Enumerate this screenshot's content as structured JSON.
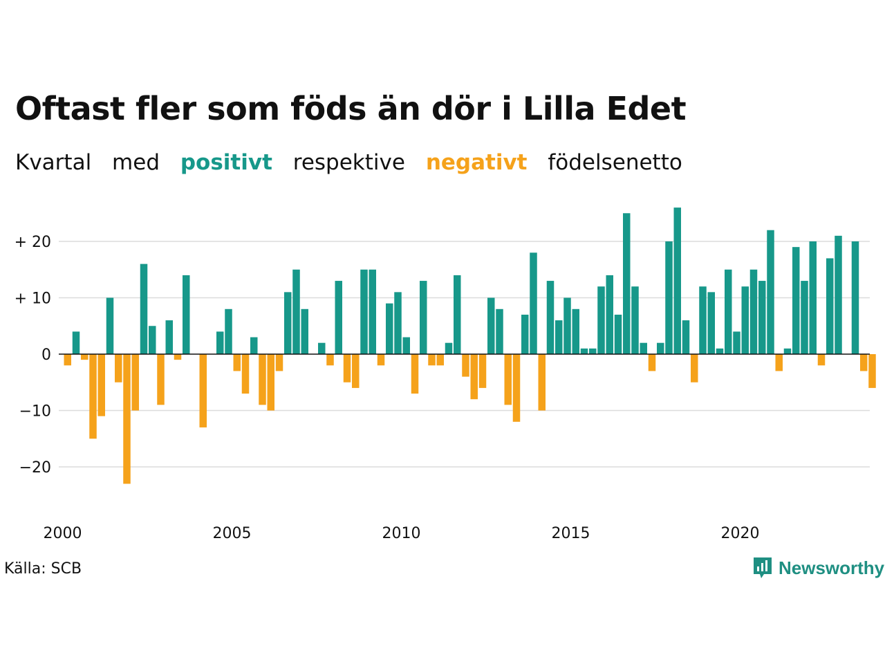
{
  "title": "Oftast fler som föds än dör i Lilla Edet",
  "subtitle": {
    "part1": "Kvartal",
    "part2": "med",
    "positive": "positivt",
    "part3": "respektive",
    "negative": "negativt",
    "part4": "födelsenetto"
  },
  "source": "Källa: SCB",
  "logo": {
    "text": "Newsworthy",
    "icon": "newsworthy-chart-bubble-icon"
  },
  "colors": {
    "positive": "#17988a",
    "negative": "#f5a21b",
    "grid": "#dcdcdc"
  },
  "chart_data": {
    "type": "bar",
    "x_start_year": 2000,
    "periods_per_year": 4,
    "xlabel": "",
    "ylabel": "",
    "ylim": [
      -28,
      31
    ],
    "y_ticks": [
      {
        "value": 20,
        "label": "+ 20"
      },
      {
        "value": 10,
        "label": "+ 10"
      },
      {
        "value": 0,
        "label": "0"
      },
      {
        "value": -10,
        "label": "−10"
      },
      {
        "value": -20,
        "label": "−20"
      }
    ],
    "x_ticks": [
      {
        "year": 2000,
        "label": "2000"
      },
      {
        "year": 2005,
        "label": "2005"
      },
      {
        "year": 2010,
        "label": "2010"
      },
      {
        "year": 2015,
        "label": "2015"
      },
      {
        "year": 2020,
        "label": "2020"
      }
    ],
    "values": [
      -2,
      4,
      -1,
      -15,
      -11,
      10,
      -5,
      -23,
      -10,
      16,
      5,
      -9,
      6,
      -1,
      14,
      0,
      -13,
      0,
      4,
      8,
      -3,
      -7,
      3,
      -9,
      -10,
      -3,
      11,
      15,
      8,
      0,
      2,
      -2,
      13,
      -5,
      -6,
      15,
      15,
      -2,
      9,
      11,
      3,
      -7,
      13,
      -2,
      -2,
      2,
      14,
      -4,
      -8,
      -6,
      10,
      8,
      -9,
      -12,
      7,
      18,
      -10,
      13,
      6,
      10,
      8,
      1,
      1,
      12,
      14,
      7,
      25,
      12,
      2,
      -3,
      2,
      20,
      26,
      6,
      -5,
      12,
      11,
      1,
      15,
      4,
      12,
      15,
      13,
      22,
      -3,
      1,
      19,
      13,
      20,
      -2,
      17,
      21,
      0,
      20,
      -3,
      -6
    ],
    "grid": true,
    "legend": "none"
  }
}
